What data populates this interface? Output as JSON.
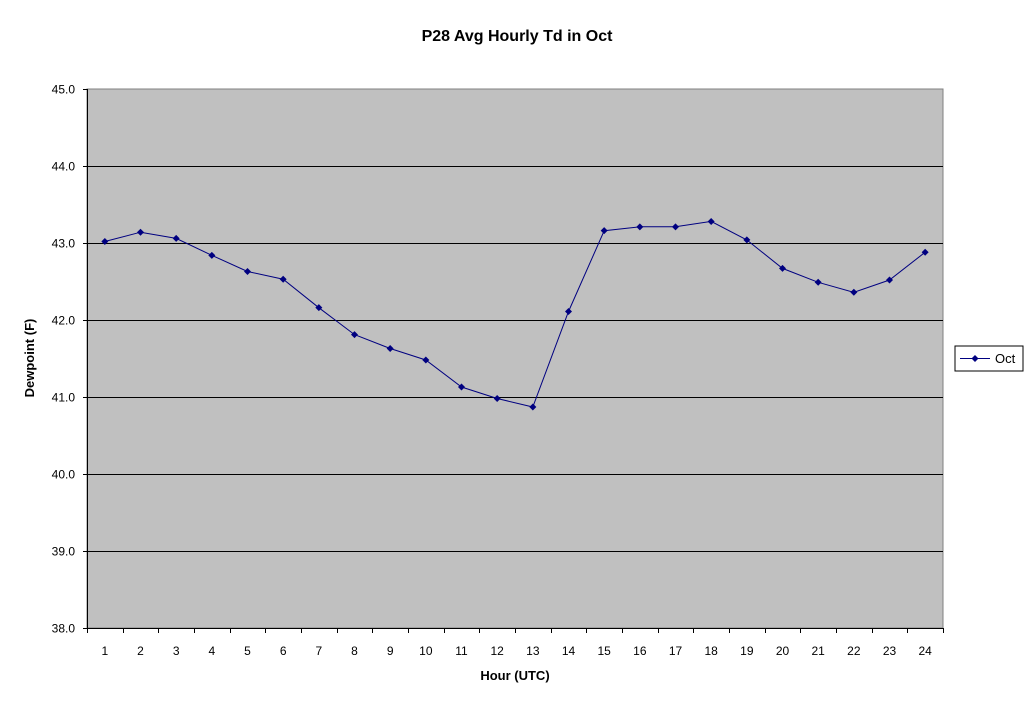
{
  "chart_data": {
    "type": "line",
    "title": "P28 Avg Hourly Td in Oct",
    "xlabel": "Hour (UTC)",
    "ylabel": "Dewpoint (F)",
    "categories": [
      "1",
      "2",
      "3",
      "4",
      "5",
      "6",
      "7",
      "8",
      "9",
      "10",
      "11",
      "12",
      "13",
      "14",
      "15",
      "16",
      "17",
      "18",
      "19",
      "20",
      "21",
      "22",
      "23",
      "24"
    ],
    "ylim": [
      38.0,
      45.0
    ],
    "ytick_labels": [
      "38.0",
      "39.0",
      "40.0",
      "41.0",
      "42.0",
      "43.0",
      "44.0",
      "45.0"
    ],
    "grid": true,
    "legend_position": "right",
    "series": [
      {
        "name": "Oct",
        "values": [
          43.02,
          43.14,
          43.06,
          42.84,
          42.63,
          42.53,
          42.16,
          41.81,
          41.63,
          41.48,
          41.13,
          40.98,
          40.87,
          42.11,
          43.16,
          43.21,
          43.21,
          43.28,
          43.04,
          42.67,
          42.49,
          42.36,
          42.52,
          42.88
        ]
      }
    ],
    "colors": {
      "plot_background": "#c0c0c0",
      "series_line": "#000080",
      "gridline": "#000000"
    }
  }
}
